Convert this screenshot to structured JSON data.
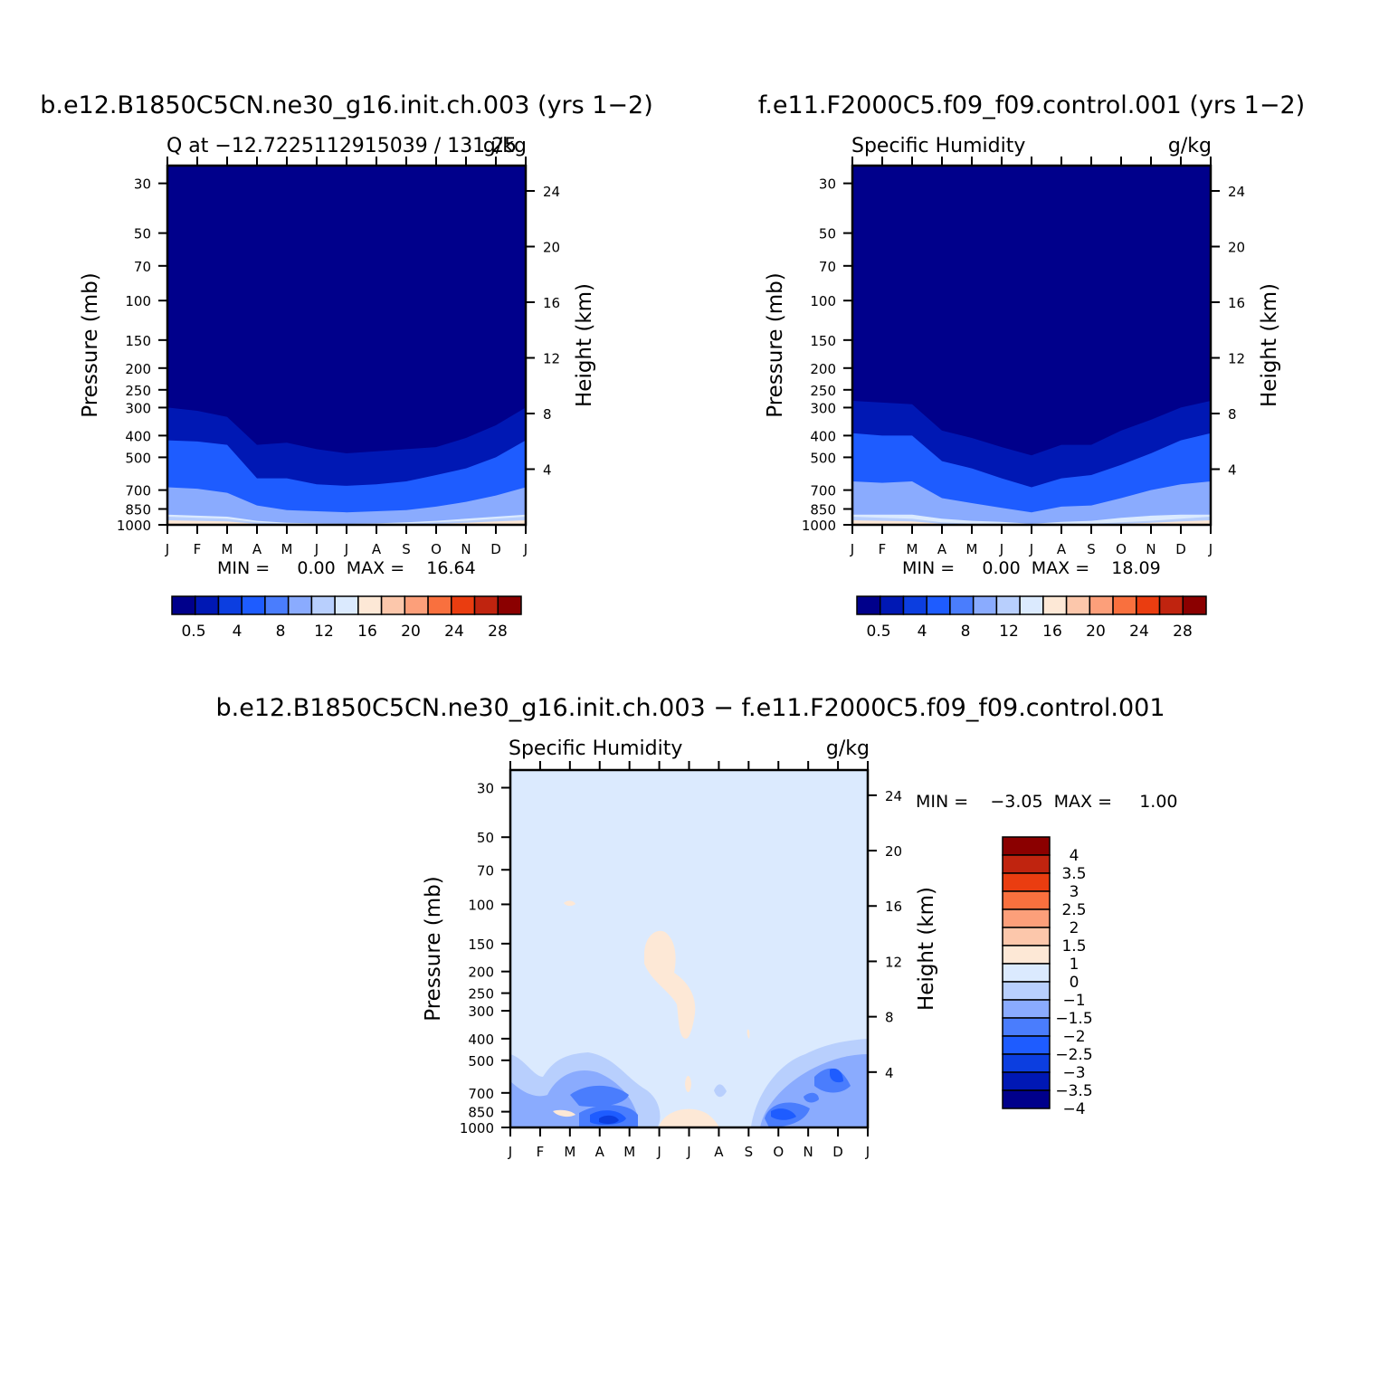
{
  "panels": [
    {
      "id": "p1",
      "main_title": "b.e12.B1850C5CN.ne30_g16.init.ch.003 (yrs 1−2)",
      "left_title": "Q at −12.7225112915039 / 131.25",
      "units": "g/kg",
      "minmax": "MIN =     0.00  MAX =    16.64"
    },
    {
      "id": "p2",
      "main_title": "f.e11.F2000C5.f09_f09.control.001 (yrs 1−2)",
      "left_title": "Specific Humidity",
      "units": "g/kg",
      "minmax": "MIN =     0.00  MAX =    18.09"
    },
    {
      "id": "p3",
      "main_title": "b.e12.B1850C5CN.ne30_g16.init.ch.003 − f.e11.F2000C5.f09_f09.control.001",
      "left_title": "Specific Humidity",
      "units": "g/kg",
      "minmax": "MIN =    −3.05  MAX =     1.00"
    }
  ],
  "axes": {
    "x_ticks": [
      "J",
      "F",
      "M",
      "A",
      "M",
      "J",
      "J",
      "A",
      "S",
      "O",
      "N",
      "D",
      "J"
    ],
    "y_label": "Pressure (mb)",
    "y_ticks": [
      30,
      50,
      70,
      100,
      150,
      200,
      250,
      300,
      400,
      500,
      700,
      850,
      1000
    ],
    "y2_label": "Height (km)",
    "y2_ticks": [
      4,
      8,
      12,
      16,
      20,
      24
    ]
  },
  "colorbars": {
    "abs": {
      "colors": [
        "#00008b",
        "#0018b4",
        "#0c3ee0",
        "#1e5cff",
        "#4a7dfd",
        "#8aabfe",
        "#b8cffd",
        "#dbeafe",
        "#fde8d6",
        "#fcc7ab",
        "#fc9f7a",
        "#f9703e",
        "#ea3d10",
        "#c0240f",
        "#8b0000"
      ],
      "labels": [
        "0.5",
        "4",
        "8",
        "12",
        "16",
        "20",
        "24",
        "28"
      ]
    },
    "diff": {
      "colors": [
        "#8b0000",
        "#c0240f",
        "#ea3d10",
        "#f9703e",
        "#fc9f7a",
        "#fcc7ab",
        "#fde8d6",
        "#dbeafe",
        "#b8cffd",
        "#8aabfe",
        "#4a7dfd",
        "#1e5cff",
        "#0c3ee0",
        "#0018b4",
        "#00008b"
      ],
      "labels": [
        "4",
        "3.5",
        "3",
        "2.5",
        "2",
        "1.5",
        "1",
        "0",
        "−1",
        "−1.5",
        "−2",
        "−2.5",
        "−3",
        "−3.5",
        "−4"
      ]
    }
  },
  "chart_data": [
    {
      "type": "heatmap",
      "title": "b.e12.B1850C5CN.ne30_g16.init.ch.003 (yrs 1−2)",
      "xlabel": "",
      "ylabel": "Pressure (mb)",
      "y2label": "Height (km)",
      "ylim": [
        1000,
        25
      ],
      "ylog": true,
      "x": [
        "J",
        "F",
        "M",
        "A",
        "M",
        "J",
        "J",
        "A",
        "S",
        "O",
        "N",
        "D",
        "J"
      ],
      "contour_top_pressures": {
        "level_0.5_to_4": [
          300,
          310,
          330,
          440,
          430,
          460,
          480,
          470,
          460,
          450,
          410,
          360,
          300
        ],
        "level_4_to_8": [
          420,
          425,
          440,
          620,
          620,
          660,
          670,
          660,
          640,
          600,
          560,
          500,
          420
        ],
        "level_8_to_12": [
          680,
          690,
          720,
          820,
          860,
          870,
          880,
          870,
          860,
          830,
          790,
          740,
          680
        ],
        "level_12_to_16": [
          900,
          910,
          920,
          960,
          980,
          985,
          990,
          985,
          975,
          960,
          940,
          920,
          900
        ]
      },
      "min": 0.0,
      "max": 16.64
    },
    {
      "type": "heatmap",
      "title": "f.e11.F2000C5.f09_f09.control.001 (yrs 1−2)",
      "xlabel": "",
      "ylabel": "Pressure (mb)",
      "y2label": "Height (km)",
      "ylim": [
        1000,
        25
      ],
      "ylog": true,
      "x": [
        "J",
        "F",
        "M",
        "A",
        "M",
        "J",
        "J",
        "A",
        "S",
        "O",
        "N",
        "D",
        "J"
      ],
      "contour_top_pressures": {
        "level_0.5_to_4": [
          280,
          285,
          290,
          380,
          410,
          450,
          490,
          440,
          440,
          380,
          340,
          300,
          280
        ],
        "level_4_to_8": [
          390,
          400,
          400,
          520,
          560,
          620,
          680,
          620,
          600,
          540,
          480,
          420,
          390
        ],
        "level_8_to_12": [
          640,
          650,
          640,
          760,
          800,
          840,
          880,
          830,
          820,
          760,
          700,
          660,
          640
        ],
        "level_12_to_16": [
          900,
          900,
          900,
          940,
          960,
          970,
          990,
          970,
          960,
          930,
          910,
          900,
          900
        ]
      },
      "min": 0.0,
      "max": 18.09
    },
    {
      "type": "heatmap",
      "title": "b.e12.B1850C5CN.ne30_g16.init.ch.003 − f.e11.F2000C5.f09_f09.control.001",
      "xlabel": "",
      "ylabel": "Pressure (mb)",
      "y2label": "Height (km)",
      "ylim": [
        1000,
        25
      ],
      "ylog": true,
      "x": [
        "J",
        "F",
        "M",
        "A",
        "M",
        "J",
        "J",
        "A",
        "S",
        "O",
        "N",
        "D",
        "J"
      ],
      "background_level": "0 to −1",
      "features": [
        "−1.5 to −2 region near surface Jan–May and Oct–Dec",
        "−2.5 to −3 core near 850 mb in April",
        "−2.5 core near 850 mb in October",
        "0 to 1 positive region 130–350 mb in June–July",
        "0 to 1 positive near surface in July"
      ],
      "min": -3.05,
      "max": 1.0
    }
  ]
}
